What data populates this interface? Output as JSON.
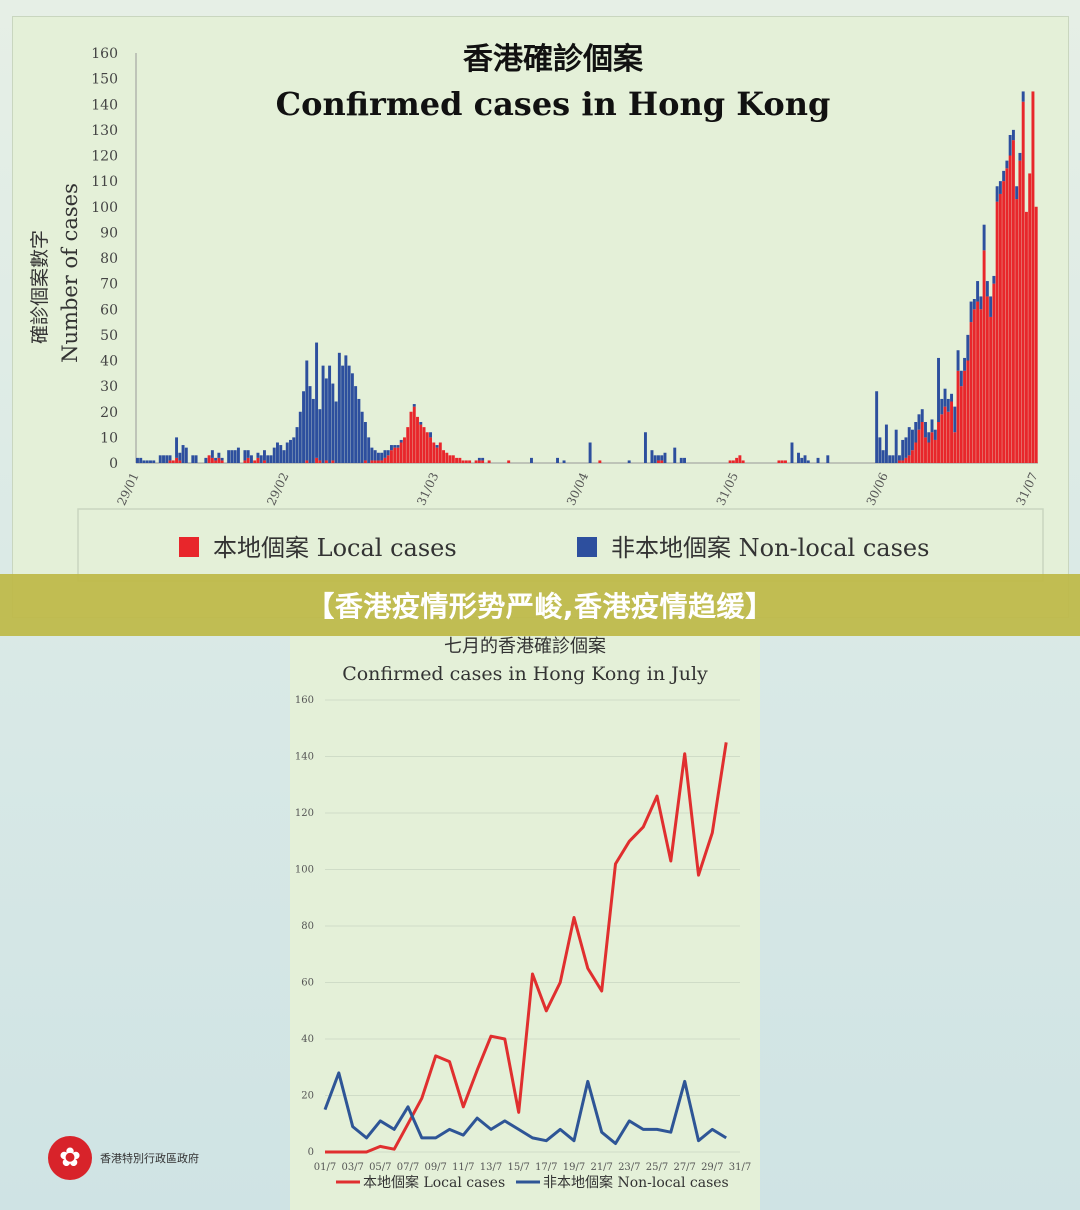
{
  "banner": {
    "text": "【香港疫情形势严峻,香港疫情趋缓】"
  },
  "logo": {
    "text": "香港特別行政區政府",
    "icon": "bauhinia-icon"
  },
  "chart_data": [
    {
      "type": "bar",
      "stacked": true,
      "title": "香港確診個案",
      "subtitle": "Confirmed cases in Hong Kong",
      "ylabel_zh": "確診個案數字",
      "ylabel": "Number of cases",
      "ylim": [
        0,
        160
      ],
      "yticks": [
        0,
        10,
        20,
        30,
        40,
        50,
        60,
        70,
        80,
        90,
        100,
        110,
        120,
        130,
        140,
        150,
        160
      ],
      "xticks": [
        "29/01",
        "29/02",
        "31/03",
        "30/04",
        "31/05",
        "30/06",
        "31/07"
      ],
      "legend": {
        "placement": "bottom",
        "local": "本地個案 Local cases",
        "nonlocal": "非本地個案 Non-local cases"
      },
      "colors": {
        "local": "#e8262b",
        "nonlocal": "#2d4f9e"
      },
      "series": [
        {
          "name": "本地個案 Local cases",
          "values": [
            0,
            0,
            0,
            0,
            0,
            0,
            0,
            0,
            0,
            0,
            1,
            1,
            2,
            1,
            0,
            0,
            0,
            0,
            0,
            0,
            0,
            0,
            3,
            2,
            1,
            2,
            1,
            0,
            0,
            0,
            0,
            0,
            0,
            1,
            2,
            0,
            1,
            2,
            0,
            1,
            0,
            0,
            0,
            0,
            0,
            0,
            0,
            0,
            0,
            0,
            0,
            0,
            1,
            0,
            0,
            2,
            1,
            0,
            1,
            0,
            1,
            0,
            0,
            0,
            0,
            0,
            0,
            0,
            0,
            0,
            1,
            0,
            1,
            1,
            1,
            1,
            2,
            3,
            5,
            6,
            6,
            8,
            10,
            14,
            20,
            22,
            18,
            15,
            14,
            12,
            10,
            8,
            6,
            8,
            5,
            4,
            3,
            3,
            2,
            2,
            1,
            1,
            1,
            0,
            1,
            1,
            1,
            0,
            1,
            0,
            0,
            0,
            0,
            0,
            1,
            0,
            0,
            0,
            0,
            0,
            0,
            0,
            0,
            0,
            0,
            0,
            0,
            0,
            0,
            0,
            0,
            0,
            0,
            0,
            0,
            0,
            0,
            0,
            0,
            0,
            0,
            0,
            1,
            0,
            0,
            0,
            0,
            0,
            0,
            0,
            0,
            0,
            0,
            0,
            0,
            0,
            0,
            0,
            0,
            0,
            1,
            1,
            0,
            0,
            0,
            0,
            0,
            0,
            0,
            0,
            0,
            0,
            0,
            0,
            0,
            0,
            0,
            0,
            0,
            0,
            0,
            0,
            1,
            1,
            2,
            3,
            1,
            0,
            0,
            0,
            0,
            0,
            0,
            0,
            0,
            0,
            0,
            1,
            1,
            1,
            0,
            0,
            0,
            0,
            0,
            0,
            0,
            0,
            0,
            0,
            0,
            0,
            0,
            0,
            0,
            0,
            0,
            0,
            0,
            0,
            0,
            0,
            0,
            0,
            0,
            0,
            0,
            0,
            0,
            0,
            0,
            0,
            0,
            0,
            1,
            1,
            2,
            3,
            5,
            8,
            13,
            16,
            10,
            8,
            12,
            9,
            16,
            19,
            22,
            20,
            24,
            12,
            36,
            30,
            36,
            40,
            55,
            60,
            63,
            60,
            83,
            65,
            57,
            70,
            102,
            105,
            110,
            115,
            120,
            126,
            103,
            118,
            141,
            98,
            113,
            145,
            100
          ]
        },
        {
          "name": "非本地個案 Non-local cases",
          "values": [
            2,
            2,
            1,
            1,
            1,
            1,
            0,
            3,
            3,
            3,
            2,
            0,
            8,
            3,
            7,
            6,
            0,
            3,
            3,
            0,
            0,
            2,
            0,
            3,
            1,
            2,
            1,
            0,
            5,
            5,
            5,
            6,
            0,
            4,
            3,
            3,
            0,
            2,
            3,
            4,
            3,
            3,
            6,
            8,
            7,
            5,
            8,
            9,
            10,
            14,
            20,
            28,
            39,
            30,
            25,
            45,
            20,
            38,
            32,
            38,
            30,
            24,
            43,
            38,
            42,
            38,
            35,
            30,
            25,
            20,
            15,
            10,
            5,
            4,
            3,
            3,
            3,
            2,
            2,
            1,
            1,
            1,
            0,
            0,
            0,
            1,
            0,
            1,
            0,
            0,
            2,
            0,
            1,
            0,
            0,
            0,
            0,
            0,
            0,
            0,
            0,
            0,
            0,
            0,
            0,
            1,
            1,
            0,
            0,
            0,
            0,
            0,
            0,
            0,
            0,
            0,
            0,
            0,
            0,
            0,
            0,
            2,
            0,
            0,
            0,
            0,
            0,
            0,
            0,
            2,
            0,
            1,
            0,
            0,
            0,
            0,
            0,
            0,
            0,
            8,
            0,
            0,
            0,
            0,
            0,
            0,
            0,
            0,
            0,
            0,
            0,
            1,
            0,
            0,
            0,
            0,
            12,
            0,
            5,
            3,
            2,
            2,
            4,
            0,
            0,
            6,
            0,
            2,
            2,
            0,
            0,
            0,
            0,
            0,
            0,
            0,
            0,
            0,
            0,
            0,
            0,
            0,
            0,
            0,
            0,
            0,
            0,
            0,
            0,
            0,
            0,
            0,
            0,
            0,
            0,
            0,
            0,
            0,
            0,
            0,
            0,
            8,
            0,
            4,
            2,
            3,
            1,
            0,
            0,
            2,
            0,
            0,
            3,
            0,
            0,
            0,
            0,
            0,
            0,
            0,
            0,
            0,
            0,
            0,
            0,
            0,
            0,
            28,
            10,
            5,
            15,
            3,
            3,
            13,
            2,
            8,
            8,
            11,
            8,
            8,
            6,
            5,
            6,
            4,
            5,
            4,
            25,
            6,
            7,
            5,
            3,
            10,
            8,
            6,
            5,
            10,
            8,
            4,
            8,
            5,
            10,
            6,
            8,
            3,
            6,
            5,
            4,
            3,
            8,
            4,
            5,
            3,
            4
          ]
        }
      ]
    },
    {
      "type": "line",
      "title": "七月的香港確診個案",
      "subtitle": "Confirmed cases in Hong Kong in July",
      "ylim": [
        0,
        160
      ],
      "yticks": [
        0,
        20,
        40,
        60,
        80,
        100,
        120,
        140,
        160
      ],
      "xlim": [
        1,
        31
      ],
      "xticks": [
        "01/7",
        "03/7",
        "05/7",
        "07/7",
        "09/7",
        "11/7",
        "13/7",
        "15/7",
        "17/7",
        "19/7",
        "21/7",
        "23/7",
        "25/7",
        "27/7",
        "29/7",
        "31/7"
      ],
      "colors": {
        "local": "#e02f2f",
        "nonlocal": "#2e5596"
      },
      "legend": {
        "placement": "bottom",
        "local": "本地個案 Local cases",
        "nonlocal": "非本地個案 Non-local cases"
      },
      "series": [
        {
          "name": "本地個案 Local cases",
          "x": [
            1,
            2,
            3,
            4,
            5,
            6,
            7,
            8,
            9,
            10,
            11,
            12,
            13,
            14,
            15,
            16,
            17,
            18,
            19,
            20,
            21,
            22,
            23,
            24,
            25,
            26,
            27,
            28,
            29,
            30
          ],
          "values": [
            0,
            0,
            0,
            0,
            2,
            1,
            10,
            19,
            34,
            32,
            16,
            29,
            41,
            40,
            14,
            63,
            50,
            60,
            83,
            65,
            57,
            102,
            110,
            115,
            126,
            103,
            141,
            98,
            113,
            145
          ]
        },
        {
          "name": "非本地個案 Non-local cases",
          "x": [
            1,
            2,
            3,
            4,
            5,
            6,
            7,
            8,
            9,
            10,
            11,
            12,
            13,
            14,
            15,
            16,
            17,
            18,
            19,
            20,
            21,
            22,
            23,
            24,
            25,
            26,
            27,
            28,
            29,
            30
          ],
          "values": [
            15,
            28,
            9,
            5,
            11,
            8,
            16,
            5,
            5,
            8,
            6,
            12,
            8,
            11,
            8,
            5,
            4,
            8,
            4,
            25,
            7,
            3,
            11,
            8,
            8,
            7,
            25,
            4,
            8,
            5
          ]
        }
      ]
    }
  ]
}
